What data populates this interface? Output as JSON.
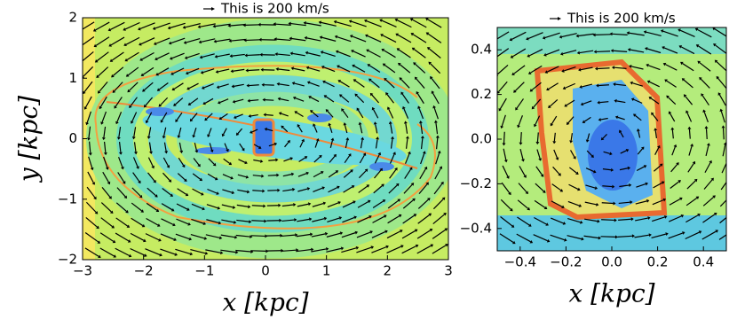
{
  "chart_data": [
    {
      "type": "vector-field",
      "annotation": "This is 200 km/s",
      "xlabel": "x [kpc]",
      "ylabel": "y [kpc]",
      "xlim": [
        -3,
        3
      ],
      "ylim": [
        -2,
        2
      ],
      "xticks": [
        {
          "value": -3,
          "label": "−3"
        },
        {
          "value": -2,
          "label": "−2"
        },
        {
          "value": -1,
          "label": "−1"
        },
        0,
        1,
        2,
        3
      ],
      "yticks": [
        {
          "value": -2,
          "label": "−2"
        },
        {
          "value": -1,
          "label": "−1"
        },
        0,
        1,
        2
      ]
    },
    {
      "type": "vector-field",
      "annotation": "This is 200 km/s",
      "xlabel": "x [kpc]",
      "xlim": [
        -0.5,
        0.5
      ],
      "ylim": [
        -0.5,
        0.5
      ],
      "xticks": [
        {
          "value": -0.4,
          "label": "−0.4"
        },
        {
          "value": -0.2,
          "label": "−0.2"
        },
        {
          "value": 0,
          "label": "0.0"
        },
        0.2,
        0.4
      ],
      "yticks": [
        {
          "value": -0.4,
          "label": "−0.4"
        },
        {
          "value": -0.2,
          "label": "−0.2"
        },
        {
          "value": 0,
          "label": "0.0"
        },
        0.2,
        0.4
      ]
    }
  ]
}
